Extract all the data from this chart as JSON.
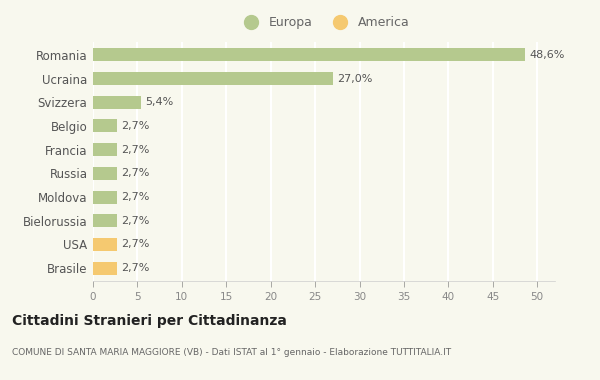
{
  "categories": [
    "Brasile",
    "USA",
    "Bielorussia",
    "Moldova",
    "Russia",
    "Francia",
    "Belgio",
    "Svizzera",
    "Ucraina",
    "Romania"
  ],
  "values": [
    2.7,
    2.7,
    2.7,
    2.7,
    2.7,
    2.7,
    2.7,
    5.4,
    27.0,
    48.6
  ],
  "labels": [
    "2,7%",
    "2,7%",
    "2,7%",
    "2,7%",
    "2,7%",
    "2,7%",
    "2,7%",
    "5,4%",
    "27,0%",
    "48,6%"
  ],
  "colors": [
    "#f5c970",
    "#f5c970",
    "#b5c98e",
    "#b5c98e",
    "#b5c98e",
    "#b5c98e",
    "#b5c98e",
    "#b5c98e",
    "#b5c98e",
    "#b5c98e"
  ],
  "legend_labels": [
    "Europa",
    "America"
  ],
  "legend_colors": [
    "#b5c98e",
    "#f5c970"
  ],
  "title": "Cittadini Stranieri per Cittadinanza",
  "subtitle": "COMUNE DI SANTA MARIA MAGGIORE (VB) - Dati ISTAT al 1° gennaio - Elaborazione TUTTITALIA.IT",
  "xlim": [
    0,
    52
  ],
  "xticks": [
    0,
    5,
    10,
    15,
    20,
    25,
    30,
    35,
    40,
    45,
    50
  ],
  "background_color": "#f8f8ee",
  "grid_color": "#ffffff",
  "bar_height": 0.55,
  "label_fontsize": 8,
  "ytick_fontsize": 8.5,
  "xtick_fontsize": 7.5
}
